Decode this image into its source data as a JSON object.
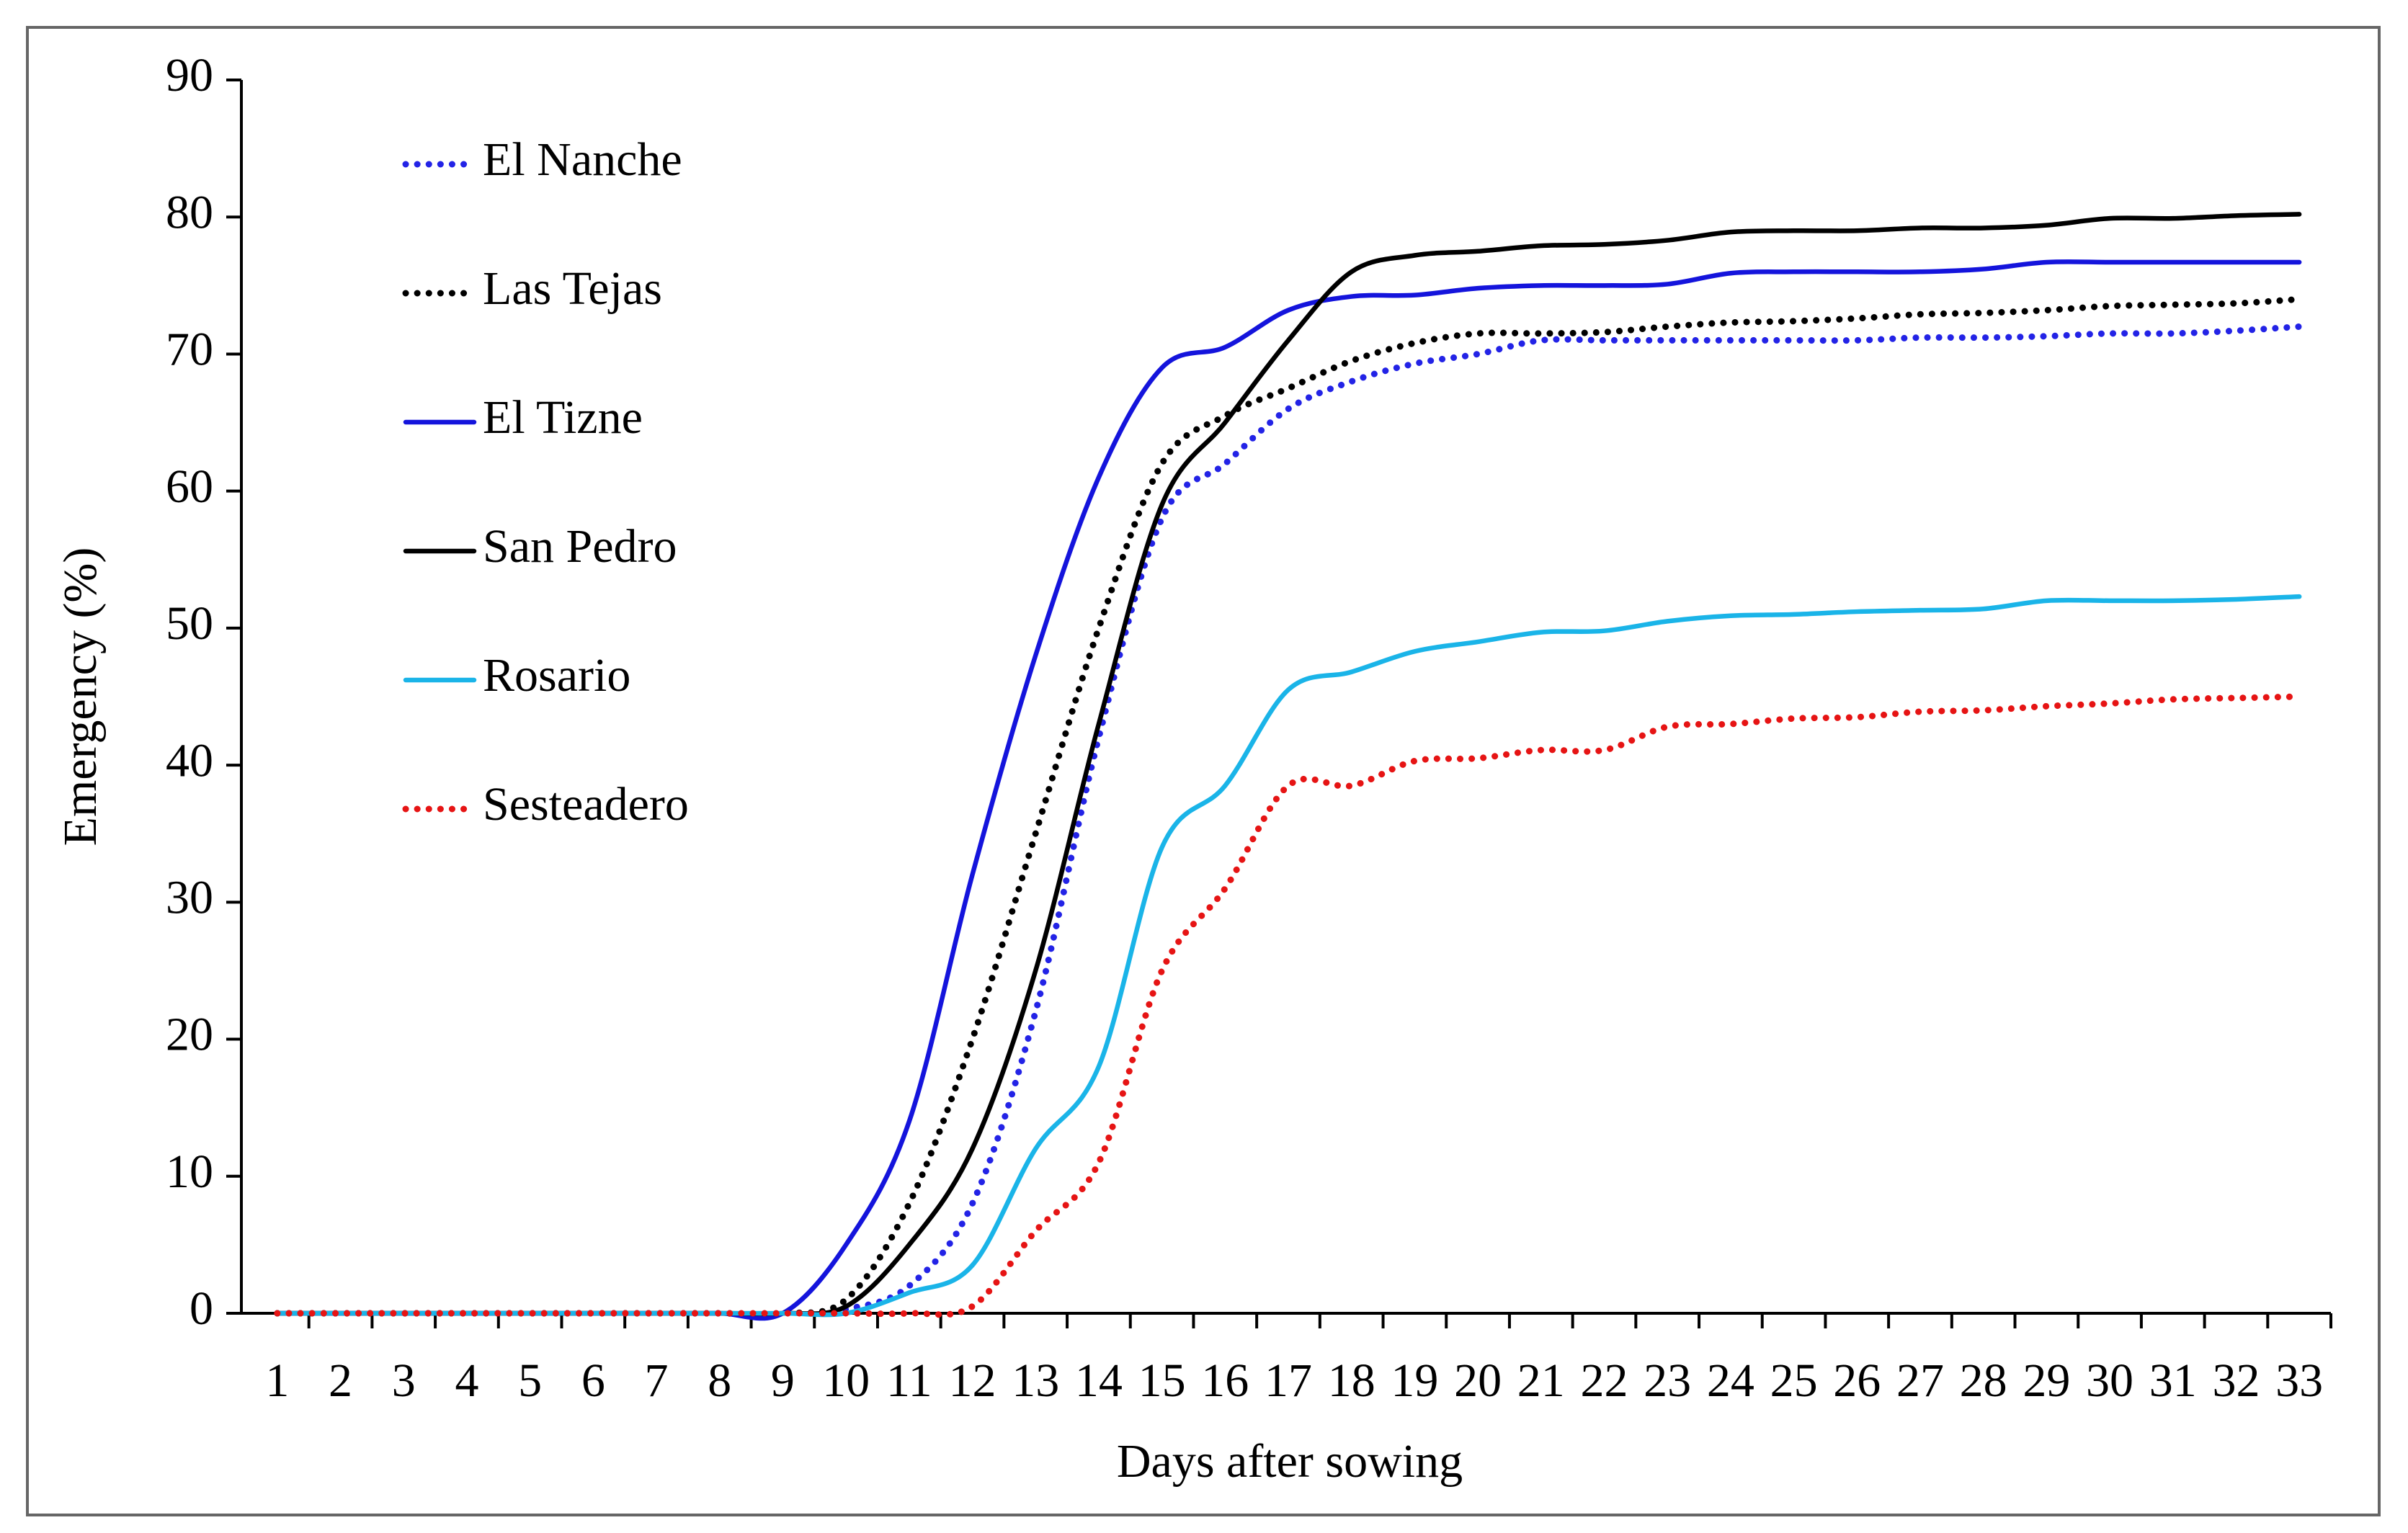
{
  "chart_data": {
    "type": "line",
    "x_label": "Days after sowing",
    "y_label": "Emergency (%)",
    "categories": [
      "1",
      "2",
      "3",
      "4",
      "5",
      "6",
      "7",
      "8",
      "9",
      "10",
      "11",
      "12",
      "13",
      "14",
      "15",
      "16",
      "17",
      "18",
      "19",
      "20",
      "21",
      "22",
      "23",
      "24",
      "25",
      "26",
      "27",
      "28",
      "29",
      "30",
      "31",
      "32",
      "33"
    ],
    "ylim": [
      0,
      90
    ],
    "yticks": [
      0,
      10,
      20,
      30,
      40,
      50,
      60,
      70,
      80,
      90
    ],
    "grid": false,
    "legend": "upper left",
    "series": [
      {
        "name": "El Nanche",
        "color": "#2323e6",
        "style": "dotted",
        "values": [
          0,
          0,
          0,
          0,
          0,
          0,
          0,
          0,
          0,
          0.3,
          2,
          8,
          22,
          42,
          58,
          62,
          66,
          68,
          69.3,
          70,
          71,
          71,
          71,
          71,
          71,
          71,
          71.2,
          71.2,
          71.3,
          71.5,
          71.5,
          71.7,
          72
        ]
      },
      {
        "name": "Las Tejas",
        "color": "#000000",
        "style": "dotted",
        "values": [
          0,
          0,
          0,
          0,
          0,
          0,
          0,
          0,
          0,
          1,
          8,
          20,
          35,
          50,
          62,
          65.5,
          67.5,
          69.5,
          70.8,
          71.5,
          71.5,
          71.6,
          72,
          72.3,
          72.4,
          72.6,
          72.9,
          73,
          73.2,
          73.5,
          73.6,
          73.7,
          74
        ]
      },
      {
        "name": "El Tizne",
        "color": "#1414dc",
        "style": "solid",
        "values": [
          0,
          0,
          0,
          0,
          0,
          0,
          0,
          0,
          0,
          5,
          14,
          32,
          48,
          61,
          69,
          70.5,
          73.2,
          74.2,
          74.3,
          74.8,
          75,
          75,
          75.1,
          75.9,
          76,
          76,
          76,
          76.2,
          76.7,
          76.7,
          76.7,
          76.7,
          76.7
        ]
      },
      {
        "name": "San Pedro",
        "color": "#000000",
        "style": "solid",
        "values": [
          0,
          0,
          0,
          0,
          0,
          0,
          0,
          0,
          0,
          0.5,
          5,
          12,
          25,
          43,
          59,
          65,
          71,
          76,
          77.2,
          77.5,
          77.9,
          78,
          78.3,
          78.9,
          79,
          79,
          79.2,
          79.2,
          79.4,
          79.9,
          79.9,
          80.1,
          80.2
        ]
      },
      {
        "name": "Rosario",
        "color": "#1ab4e8",
        "style": "solid",
        "values": [
          0,
          0,
          0,
          0,
          0,
          0,
          0,
          0,
          0,
          0,
          1.5,
          3.5,
          12,
          18,
          34,
          38.5,
          45.5,
          46.8,
          48.3,
          49,
          49.7,
          49.8,
          50.5,
          50.9,
          51,
          51.2,
          51.3,
          51.4,
          52,
          52,
          52,
          52.1,
          52.3
        ]
      },
      {
        "name": "Sesteadero",
        "color": "#e61414",
        "style": "dotted",
        "values": [
          0,
          0,
          0,
          0,
          0,
          0,
          0,
          0,
          0,
          0,
          0,
          0.5,
          6,
          11,
          25,
          31,
          38.5,
          38.5,
          40.3,
          40.5,
          41.1,
          41.1,
          42.8,
          43,
          43.4,
          43.5,
          43.9,
          44,
          44.3,
          44.5,
          44.8,
          44.9,
          45
        ]
      }
    ]
  }
}
